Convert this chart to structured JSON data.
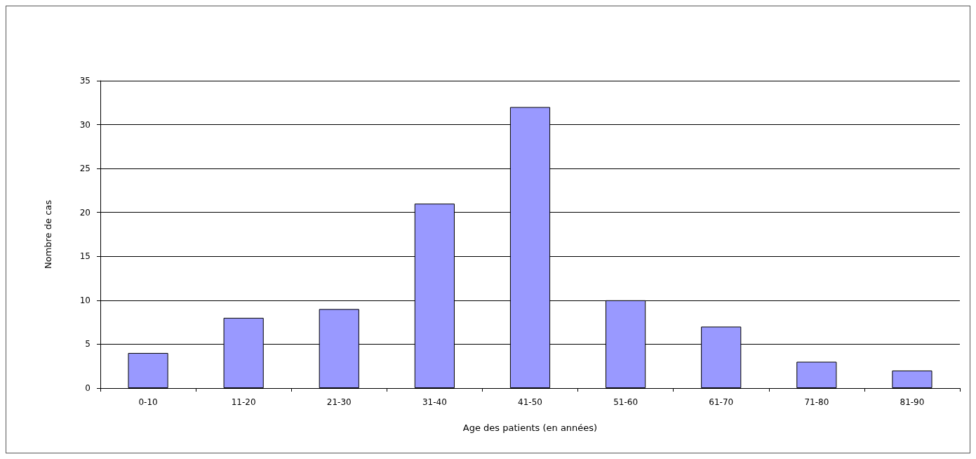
{
  "chart_data": {
    "type": "bar",
    "xlabel": "Age des patients (en années)",
    "ylabel": "Nombre de cas",
    "categories": [
      "0-10",
      "11-20",
      "21-30",
      "31-40",
      "41-50",
      "51-60",
      "61-70",
      "71-80",
      "81-90"
    ],
    "values": [
      4,
      8,
      9,
      21,
      32,
      10,
      7,
      3,
      2
    ],
    "color": "#9999ff",
    "ylim": [
      0,
      35
    ],
    "yticks": [
      0,
      5,
      10,
      15,
      20,
      25,
      30,
      35
    ],
    "grid": "y"
  }
}
